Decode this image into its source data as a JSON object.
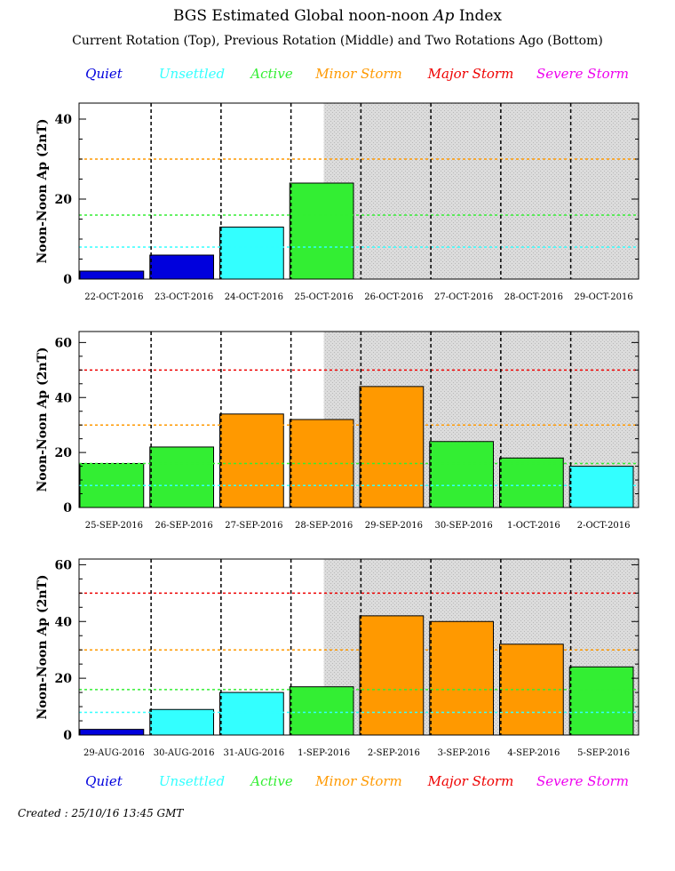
{
  "title_main": "BGS Estimated Global noon-noon",
  "title_ap": "Ap",
  "title_tail": "Index",
  "subtitle": "Current Rotation (Top), Previous Rotation (Middle) and Two Rotations Ago (Bottom)",
  "legend": [
    {
      "label": "Quiet",
      "color": "#0000dd"
    },
    {
      "label": "Unsettled",
      "color": "#33ffff"
    },
    {
      "label": "Active",
      "color": "#33ee33"
    },
    {
      "label": "Minor Storm",
      "color": "#ff9900"
    },
    {
      "label": "Major Storm",
      "color": "#ee0000"
    },
    {
      "label": "Severe Storm",
      "color": "#ee00ee"
    }
  ],
  "created": "Created : 25/10/16 13:45 GMT",
  "y_axis_label": "Noon-Noon Ap (2nT)",
  "thresholds": [
    {
      "value": 8,
      "color": "#33ffff"
    },
    {
      "value": 16,
      "color": "#33ee33"
    },
    {
      "value": 30,
      "color": "#ff9900"
    },
    {
      "value": 50,
      "color": "#ee0000"
    }
  ],
  "chart_data": [
    {
      "type": "bar",
      "categories": [
        "22-OCT-2016",
        "23-OCT-2016",
        "24-OCT-2016",
        "25-OCT-2016",
        "26-OCT-2016",
        "27-OCT-2016",
        "28-OCT-2016",
        "29-OCT-2016"
      ],
      "values": [
        2,
        6,
        13,
        24,
        null,
        null,
        null,
        null
      ],
      "bar_colors": [
        "#0000dd",
        "#0000dd",
        "#33ffff",
        "#33ee33",
        null,
        null,
        null,
        null
      ],
      "ylim": [
        0,
        44
      ],
      "yticks": [
        0,
        20,
        40
      ],
      "shaded_from_index": 3.5
    },
    {
      "type": "bar",
      "categories": [
        "25-SEP-2016",
        "26-SEP-2016",
        "27-SEP-2016",
        "28-SEP-2016",
        "29-SEP-2016",
        "30-SEP-2016",
        "1-OCT-2016",
        "2-OCT-2016"
      ],
      "values": [
        16,
        22,
        34,
        32,
        44,
        24,
        18,
        15
      ],
      "bar_colors": [
        "#33ee33",
        "#33ee33",
        "#ff9900",
        "#ff9900",
        "#ff9900",
        "#33ee33",
        "#33ee33",
        "#33ffff"
      ],
      "ylim": [
        0,
        64
      ],
      "yticks": [
        0,
        20,
        40,
        60
      ],
      "shaded_from_index": 3.5
    },
    {
      "type": "bar",
      "categories": [
        "29-AUG-2016",
        "30-AUG-2016",
        "31-AUG-2016",
        "1-SEP-2016",
        "2-SEP-2016",
        "3-SEP-2016",
        "4-SEP-2016",
        "5-SEP-2016"
      ],
      "values": [
        2,
        9,
        15,
        17,
        42,
        40,
        32,
        24
      ],
      "bar_colors": [
        "#0000dd",
        "#33ffff",
        "#33ffff",
        "#33ee33",
        "#ff9900",
        "#ff9900",
        "#ff9900",
        "#33ee33"
      ],
      "ylim": [
        0,
        62
      ],
      "yticks": [
        0,
        20,
        40,
        60
      ],
      "shaded_from_index": 3.5
    }
  ]
}
